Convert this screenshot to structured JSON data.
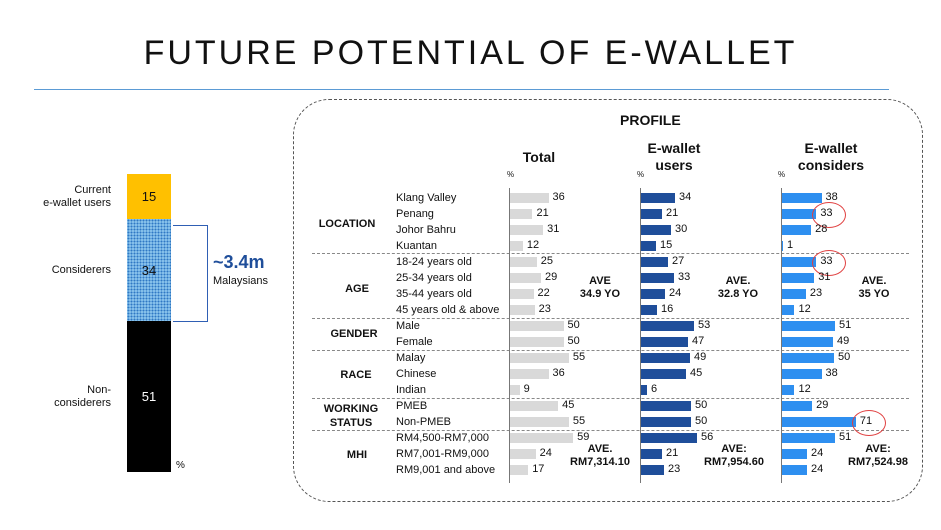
{
  "title": "FUTURE POTENTIAL OF E-WALLET",
  "left_chart": {
    "segments": [
      {
        "label": "Current\ne-wallet users",
        "value": "15"
      },
      {
        "label": "Considerers",
        "value": "34"
      },
      {
        "label": "Non-\nconsiderers",
        "value": "51"
      }
    ],
    "unit": "%",
    "callout_value": "~3.4m",
    "callout_label": "Malaysians"
  },
  "profile": {
    "title": "PROFILE",
    "columns": [
      "Total",
      "E-wallet\nusers",
      "E-wallet\nconsiders"
    ],
    "unit": "%",
    "groups": [
      {
        "name": "LOCATION",
        "rows": [
          "Klang Valley",
          "Penang",
          "Johor Bahru",
          "Kuantan"
        ]
      },
      {
        "name": "AGE",
        "rows": [
          "18-24 years old",
          "25-34 years old",
          "35-44 years old",
          "45 years old & above"
        ]
      },
      {
        "name": "GENDER",
        "rows": [
          "Male",
          "Female"
        ]
      },
      {
        "name": "RACE",
        "rows": [
          "Malay",
          "Chinese",
          "Indian"
        ]
      },
      {
        "name": "WORKING\nSTATUS",
        "rows": [
          "PMEB",
          "Non-PMEB"
        ]
      },
      {
        "name": "MHI",
        "rows": [
          "RM4,500-RM7,000",
          "RM7,001-RM9,000",
          "RM9,001 and above"
        ]
      }
    ],
    "averages": {
      "age": [
        "AVE\n34.9 YO",
        "AVE.\n32.8 YO",
        "AVE.\n35 YO"
      ],
      "mhi": [
        "AVE.\nRM7,314.10",
        "AVE:\nRM7,954.60",
        "AVE:\nRM7,524.98"
      ]
    }
  },
  "chart_data": {
    "type": "bar",
    "categories": [
      "Klang Valley",
      "Penang",
      "Johor Bahru",
      "Kuantan",
      "18-24 years old",
      "25-34 years old",
      "35-44 years old",
      "45 years old & above",
      "Male",
      "Female",
      "Malay",
      "Chinese",
      "Indian",
      "PMEB",
      "Non-PMEB",
      "RM4,500-RM7,000",
      "RM7,001-RM9,000",
      "RM9,001 and above"
    ],
    "series": [
      {
        "name": "Total",
        "values": [
          36,
          21,
          31,
          12,
          25,
          29,
          22,
          23,
          50,
          50,
          55,
          36,
          9,
          45,
          55,
          59,
          24,
          17
        ]
      },
      {
        "name": "E-wallet users",
        "values": [
          34,
          21,
          30,
          15,
          27,
          33,
          24,
          16,
          53,
          47,
          49,
          45,
          6,
          50,
          50,
          56,
          21,
          23
        ]
      },
      {
        "name": "E-wallet considers",
        "values": [
          38,
          33,
          28,
          1,
          33,
          31,
          23,
          12,
          51,
          49,
          50,
          38,
          12,
          29,
          71,
          51,
          24,
          24
        ]
      }
    ],
    "colors": [
      "#d9d9d9",
      "#1f4e9a",
      "#2e8ff0"
    ],
    "highlighted": [
      [
        2,
        1
      ],
      [
        2,
        4
      ],
      [
        2,
        14
      ]
    ],
    "overall_split": [
      15,
      34,
      51
    ]
  }
}
